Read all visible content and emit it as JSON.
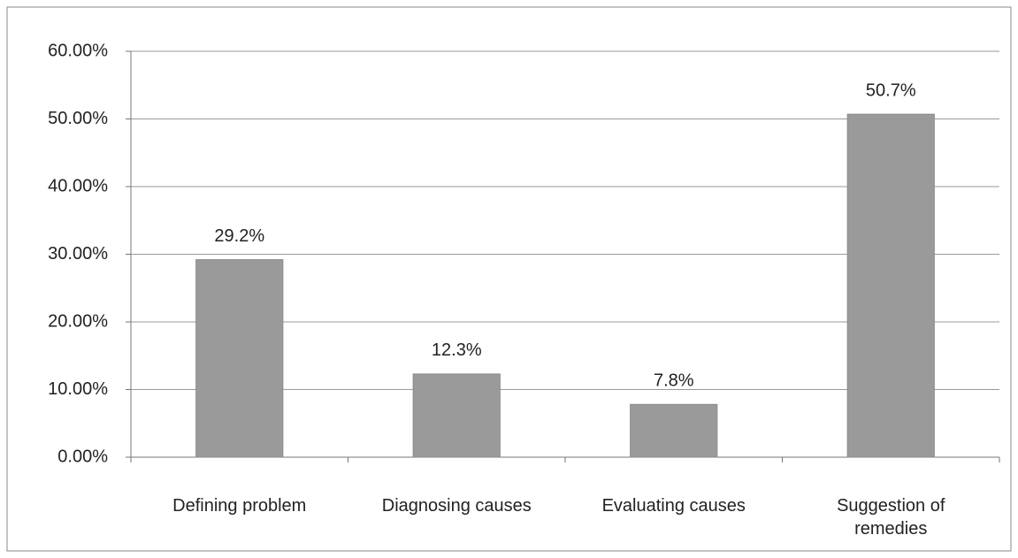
{
  "chart_data": {
    "type": "bar",
    "categories": [
      "Defining problem",
      "Diagnosing causes",
      "Evaluating causes",
      "Suggestion of remedies"
    ],
    "values": [
      29.2,
      12.3,
      7.8,
      50.7
    ],
    "value_labels": [
      "29.2%",
      "12.3%",
      "7.8%",
      "50.7%"
    ],
    "color": "#9a9a9a",
    "ylim": [
      0,
      60
    ],
    "yticks": [
      {
        "value": 0,
        "label": "0.00%"
      },
      {
        "value": 10,
        "label": "10.00%"
      },
      {
        "value": 20,
        "label": "20.00%"
      },
      {
        "value": 30,
        "label": "30.00%"
      },
      {
        "value": 40,
        "label": "40.00%"
      },
      {
        "value": 50,
        "label": "50.00%"
      },
      {
        "value": 60,
        "label": "60.00%"
      }
    ],
    "grid": true
  }
}
